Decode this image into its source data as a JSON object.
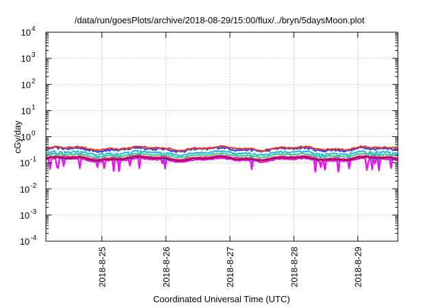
{
  "chart_data": {
    "type": "line",
    "title": "/data/run/goesPlots/archive/2018-08-29/15:00/flux/../bryn/5daysMoon.plot",
    "xlabel": "Coordinated Universal Time (UTC)",
    "ylabel": "cGy/day",
    "scale_y": "log",
    "grid": true,
    "legend": "none",
    "xlim": [
      "2018-08-24T03:00",
      "2018-08-29T15:00"
    ],
    "ylim": [
      0.0001,
      10000
    ],
    "x_ticks": [
      "2018-8-25",
      "2018-8-26",
      "2018-8-27",
      "2018-8-28",
      "2018-8-29"
    ],
    "y_ticks": [
      {
        "base": "10",
        "exp": "-4"
      },
      {
        "base": "10",
        "exp": "-3"
      },
      {
        "base": "10",
        "exp": "-2"
      },
      {
        "base": "10",
        "exp": "-1"
      },
      {
        "base": "10",
        "exp": "0"
      },
      {
        "base": "10",
        "exp": "1"
      },
      {
        "base": "10",
        "exp": "2"
      },
      {
        "base": "10",
        "exp": "3"
      },
      {
        "base": "10",
        "exp": "4"
      }
    ],
    "series": [
      {
        "color": "#1f3fff",
        "baseline": 0.33,
        "noise": 0.1,
        "dips": false
      },
      {
        "color": "#e8332a",
        "baseline": 0.36,
        "noise": 0.07,
        "dips": false
      },
      {
        "color": "#2ab4e8",
        "baseline": 0.24,
        "noise": 0.07,
        "dips": true
      },
      {
        "color": "#3ecf7a",
        "baseline": 0.195,
        "noise": 0.04,
        "dips": false
      },
      {
        "color": "#ff1aa8",
        "baseline": 0.16,
        "noise": 0.04,
        "dips": false
      },
      {
        "color": "#ff00ff",
        "baseline": 0.13,
        "noise": 0.05,
        "dips": true
      },
      {
        "color": "#8b1a3a",
        "baseline": 0.145,
        "noise": 0.03,
        "dips": false
      }
    ]
  }
}
